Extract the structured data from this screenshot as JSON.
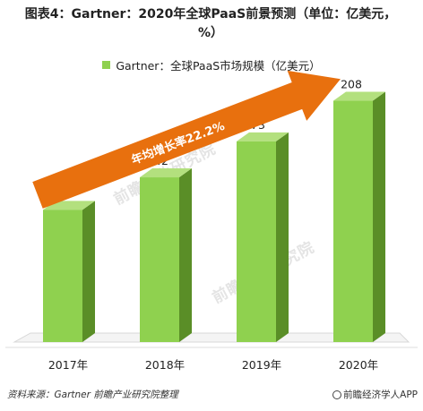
{
  "title": "图表4：Gartner：2020年全球PaaS前景预测（单位：亿美元，%）",
  "legend": {
    "label": "Gartner：全球PaaS市场规模（亿美元）",
    "color": "#8fd14f"
  },
  "annotation": {
    "label": "年均增长率22.2%",
    "color": "#e8700e"
  },
  "source": "资料来源：Gartner 前瞻产业研究院整理",
  "brand": "前瞻经济学人APP",
  "watermark": "前瞻产业研究院",
  "chart_data": {
    "type": "bar",
    "categories": [
      "2017年",
      "2018年",
      "2019年",
      "2020年"
    ],
    "series": [
      {
        "name": "Gartner：全球PaaS市场规模（亿美元）",
        "values": [
          114,
          142,
          173,
          208
        ]
      }
    ],
    "ylim": [
      0,
      220
    ],
    "grid": false,
    "legend_position": "top",
    "annotation": "年均增长率22.2%",
    "colors": {
      "bar_front": "#8fd14f",
      "bar_side": "#5a8e27",
      "bar_top": "#b3e07e",
      "arrow": "#e8700e"
    }
  }
}
